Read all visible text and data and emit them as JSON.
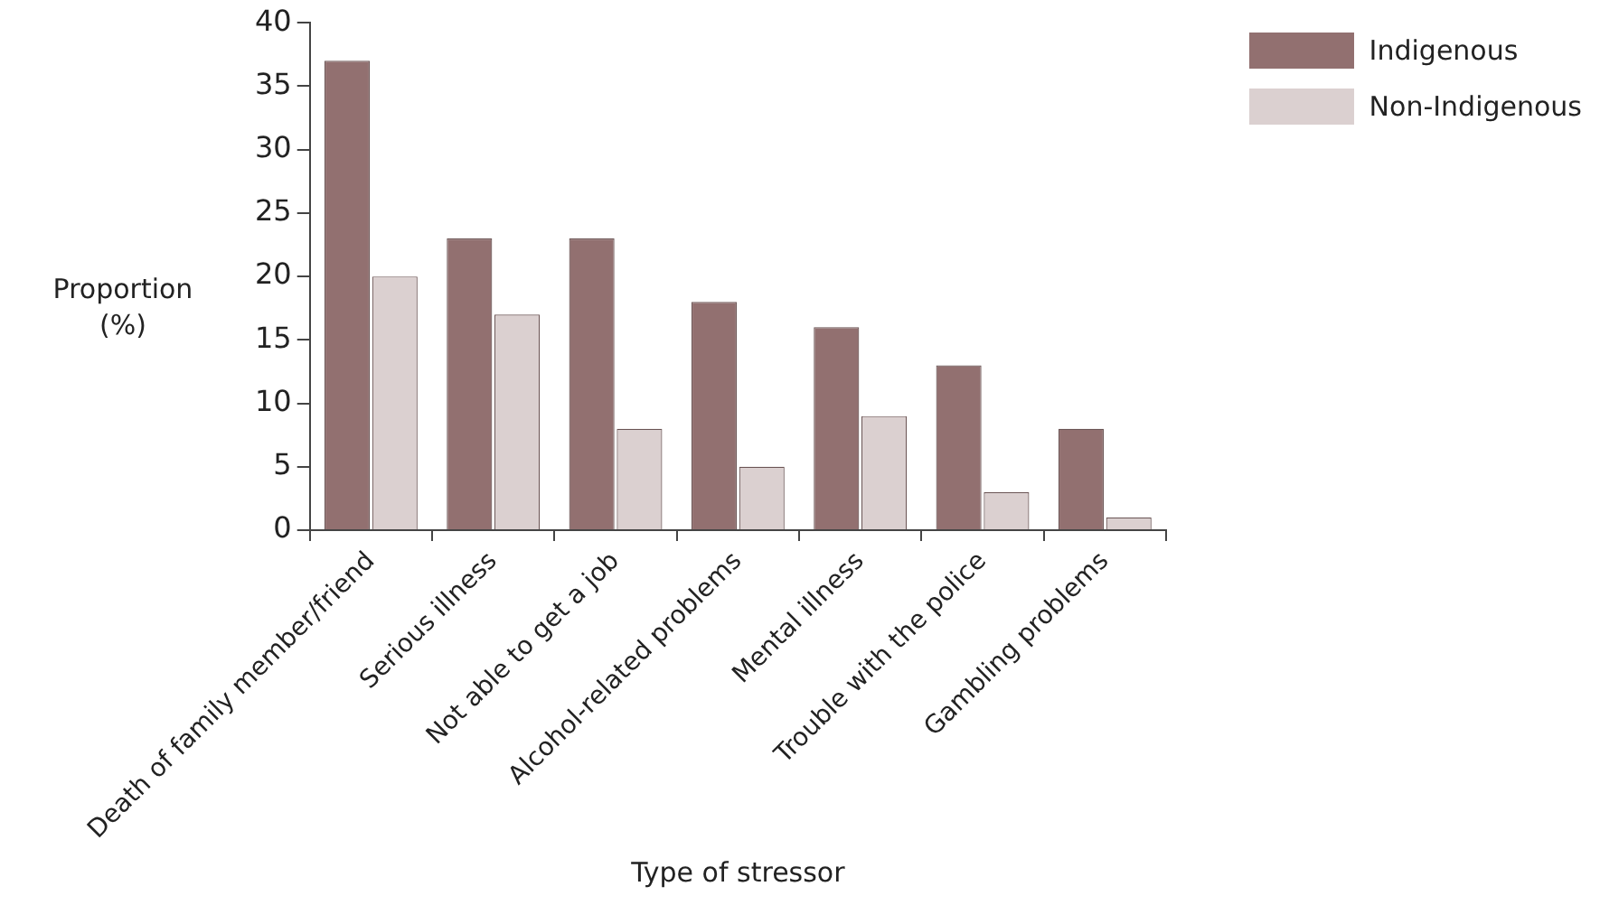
{
  "chart_data": {
    "type": "bar",
    "xlabel": "Type of stressor",
    "ylabel": "Proportion (%)",
    "categories": [
      "Death of family member/friend",
      "Serious illness",
      "Not able to get a job",
      "Alcohol-related problems",
      "Mental illness",
      "Trouble with the police",
      "Gambling problems"
    ],
    "series": [
      {
        "name": "Indigenous",
        "color": "#927070",
        "values": [
          37,
          23,
          23,
          18,
          16,
          13,
          8
        ]
      },
      {
        "name": "Non-Indigenous",
        "color": "#dbd0d0",
        "values": [
          20,
          17,
          8,
          5,
          9,
          3,
          1
        ]
      }
    ],
    "ylim": [
      0,
      40
    ],
    "yticks": [
      0,
      5,
      10,
      15,
      20,
      25,
      30,
      35,
      40
    ],
    "grid": false,
    "legend": "top right"
  }
}
